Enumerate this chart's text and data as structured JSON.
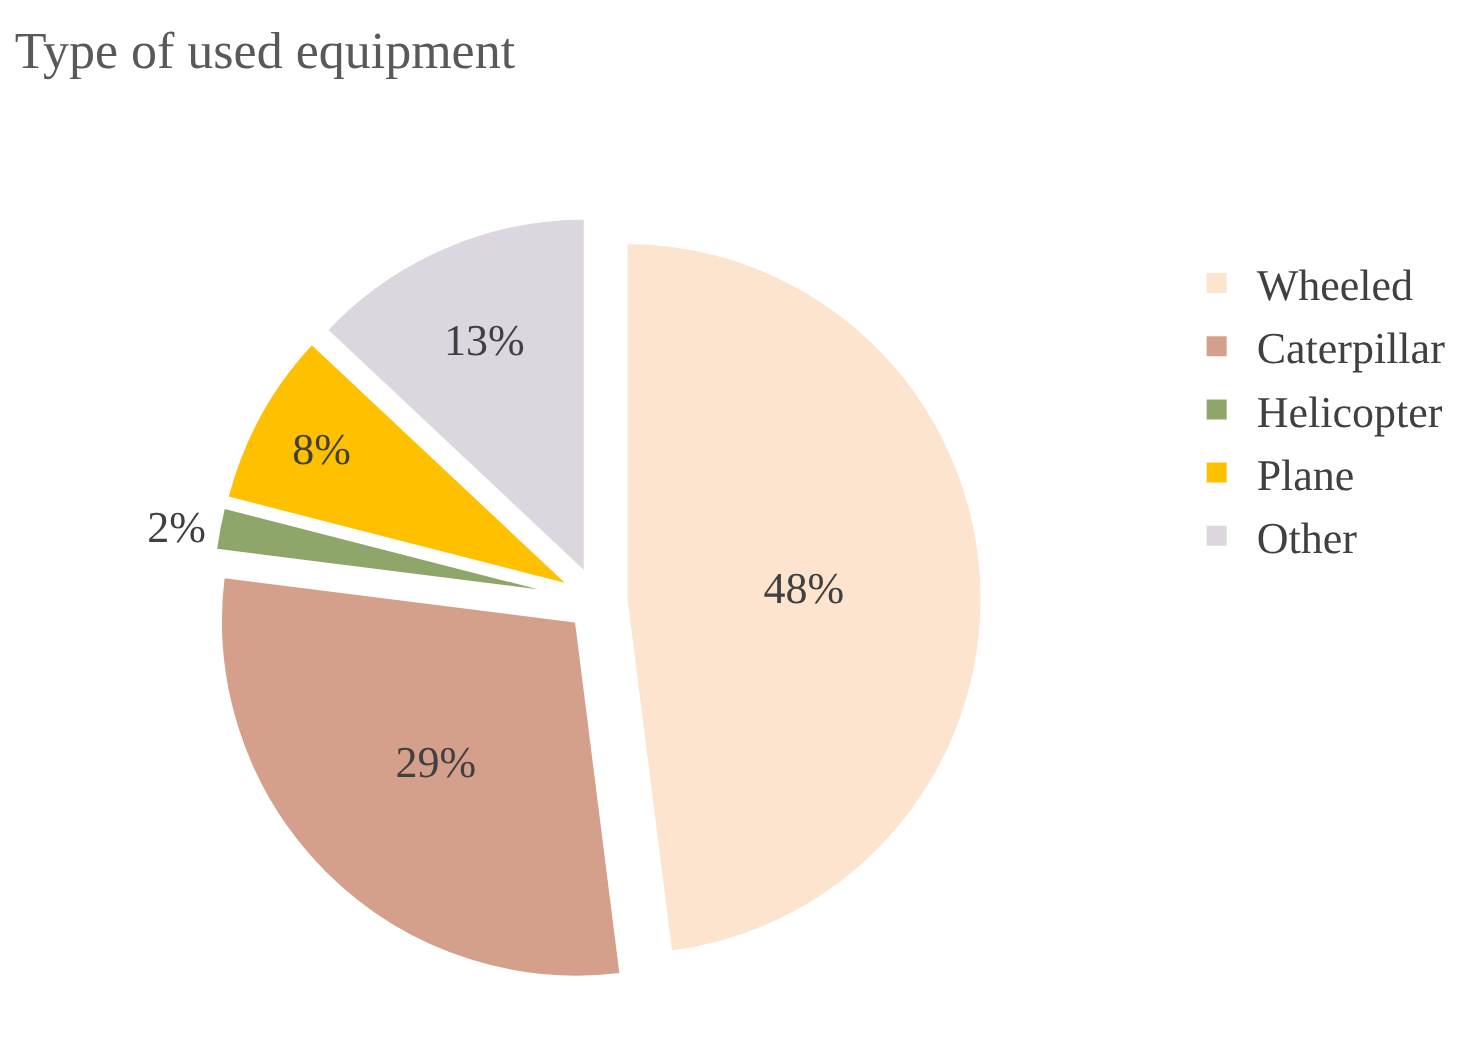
{
  "chart_data": {
    "type": "pie",
    "title": "Type of used equipment",
    "categories": [
      "Wheeled",
      "Caterpillar",
      "Helicopter",
      "Plane",
      "Other"
    ],
    "values": [
      48,
      29,
      2,
      8,
      13
    ],
    "value_labels": [
      "48%",
      "29%",
      "2%",
      "8%",
      "13%"
    ],
    "colors": [
      "#fce4cf",
      "#d4a08b",
      "#8fa66b",
      "#ffc000",
      "#dcd7df"
    ],
    "legend": "right"
  }
}
